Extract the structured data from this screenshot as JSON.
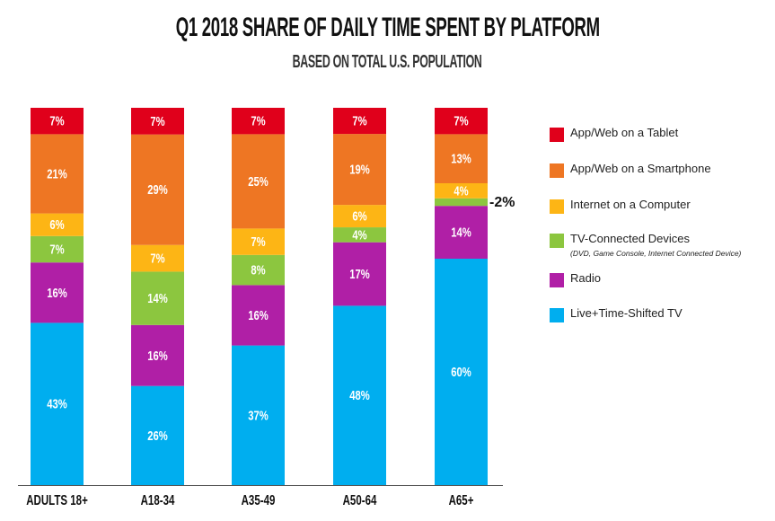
{
  "chart_data": {
    "type": "bar",
    "stacked": true,
    "title": "Q1 2018 SHARE OF DAILY TIME SPENT BY PLATFORM",
    "subtitle": "BASED ON TOTAL U.S. POPULATION",
    "categories": [
      "ADULTS 18+",
      "A18-34",
      "A35-49",
      "A50-64",
      "A65+"
    ],
    "series": [
      {
        "name": "Live+Time-Shifted TV",
        "color": "#00aeef",
        "values": [
          43,
          26,
          37,
          48,
          60
        ]
      },
      {
        "name": "Radio",
        "color": "#b01fa6",
        "values": [
          16,
          16,
          16,
          17,
          14
        ]
      },
      {
        "name": "TV-Connected Devices",
        "note": "(DVD, Game Console, Internet Connected Device)",
        "color": "#8cc63f",
        "values": [
          7,
          14,
          8,
          4,
          2
        ]
      },
      {
        "name": "Internet on a Computer",
        "color": "#fdb515",
        "values": [
          6,
          7,
          7,
          6,
          4
        ]
      },
      {
        "name": "App/Web on a Smartphone",
        "color": "#ee7623",
        "values": [
          21,
          29,
          25,
          19,
          13
        ]
      },
      {
        "name": "App/Web on a Tablet",
        "color": "#e0001b",
        "values": [
          7,
          7,
          7,
          7,
          7
        ]
      }
    ],
    "outside_label": "-2%",
    "legend_position": "right",
    "grid": false
  }
}
